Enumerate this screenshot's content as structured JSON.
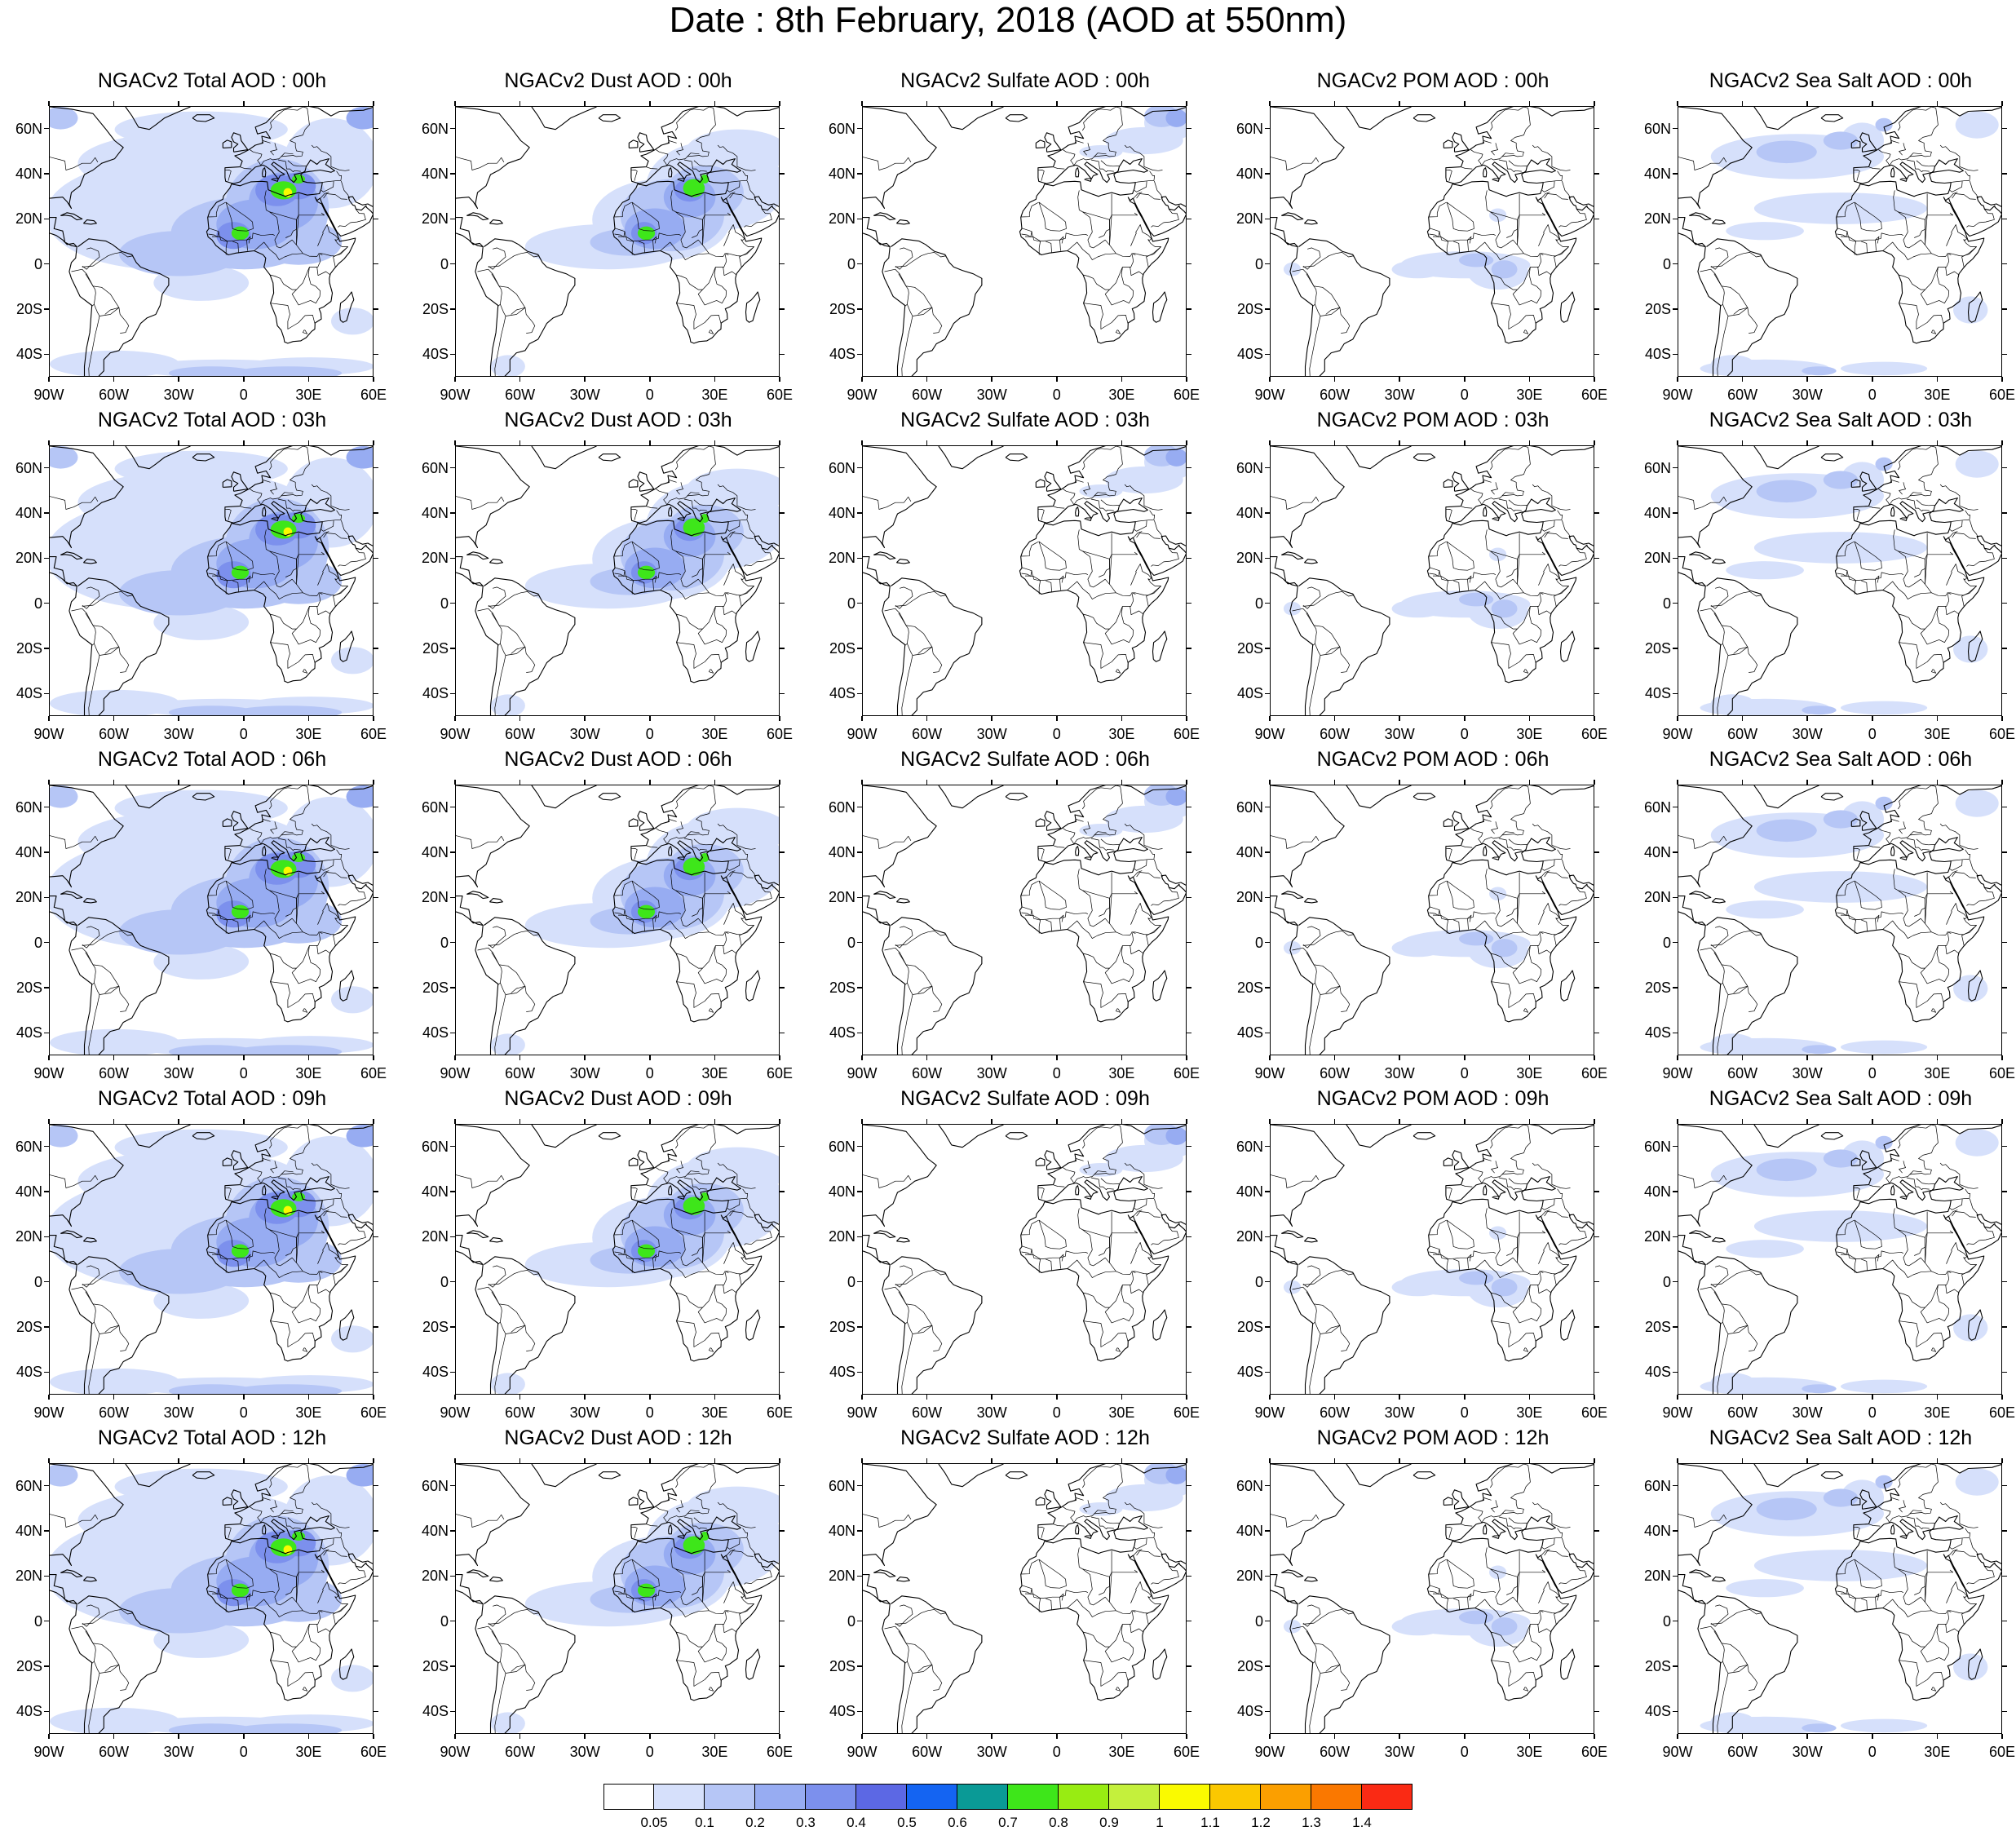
{
  "title": "Date : 8th February, 2018 (AOD at 550nm)",
  "lat_labels": [
    "60N",
    "40N",
    "20N",
    "0",
    "20S",
    "40S"
  ],
  "lon_labels": [
    "90W",
    "60W",
    "30W",
    "0",
    "30E",
    "60E"
  ],
  "panels": [
    {
      "title": "NGACv2 Total AOD : 00h",
      "species": "total"
    },
    {
      "title": "NGACv2 Dust AOD : 00h",
      "species": "dust"
    },
    {
      "title": "NGACv2 Sulfate AOD : 00h",
      "species": "sulfate"
    },
    {
      "title": "NGACv2 POM AOD : 00h",
      "species": "pom"
    },
    {
      "title": "NGACv2 Sea Salt AOD : 00h",
      "species": "seasalt"
    },
    {
      "title": "NGACv2 Total AOD : 03h",
      "species": "total"
    },
    {
      "title": "NGACv2 Dust AOD : 03h",
      "species": "dust"
    },
    {
      "title": "NGACv2 Sulfate AOD : 03h",
      "species": "sulfate"
    },
    {
      "title": "NGACv2 POM AOD : 03h",
      "species": "pom"
    },
    {
      "title": "NGACv2 Sea Salt AOD : 03h",
      "species": "seasalt"
    },
    {
      "title": "NGACv2 Total AOD : 06h",
      "species": "total"
    },
    {
      "title": "NGACv2 Dust AOD : 06h",
      "species": "dust"
    },
    {
      "title": "NGACv2 Sulfate AOD : 06h",
      "species": "sulfate"
    },
    {
      "title": "NGACv2 POM AOD : 06h",
      "species": "pom"
    },
    {
      "title": "NGACv2 Sea Salt AOD : 06h",
      "species": "seasalt"
    },
    {
      "title": "NGACv2 Total AOD : 09h",
      "species": "total"
    },
    {
      "title": "NGACv2 Dust AOD : 09h",
      "species": "dust"
    },
    {
      "title": "NGACv2 Sulfate AOD : 09h",
      "species": "sulfate"
    },
    {
      "title": "NGACv2 POM AOD : 09h",
      "species": "pom"
    },
    {
      "title": "NGACv2 Sea Salt  AOD : 09h",
      "species": "seasalt"
    },
    {
      "title": "NGACv2 Total AOD  : 12h",
      "species": "total"
    },
    {
      "title": "NGACv2 Dust AOD : 12h",
      "species": "dust"
    },
    {
      "title": "NGACv2 Sulfate AOD : 12h",
      "species": "sulfate"
    },
    {
      "title": "NGACv2 POM  AOD : 12h",
      "species": "pom"
    },
    {
      "title": "NGACv2 Sea Salt  AOD : 12h",
      "species": "seasalt"
    }
  ],
  "colorbar": {
    "labels": [
      "0.05",
      "0.1",
      "0.2",
      "0.3",
      "0.4",
      "0.5",
      "0.6",
      "0.7",
      "0.8",
      "0.9",
      "1",
      "1.1",
      "1.2",
      "1.3",
      "1.4"
    ],
    "colors": [
      "#ffffff",
      "#d6e0fb",
      "#b6c6f6",
      "#97acf2",
      "#7c90ed",
      "#5c68e4",
      "#1464f2",
      "#0a9a96",
      "#3ee61a",
      "#98ec12",
      "#c4f03c",
      "#fafa00",
      "#fbc800",
      "#fb9f00",
      "#fa7800",
      "#fa2a14"
    ]
  }
}
